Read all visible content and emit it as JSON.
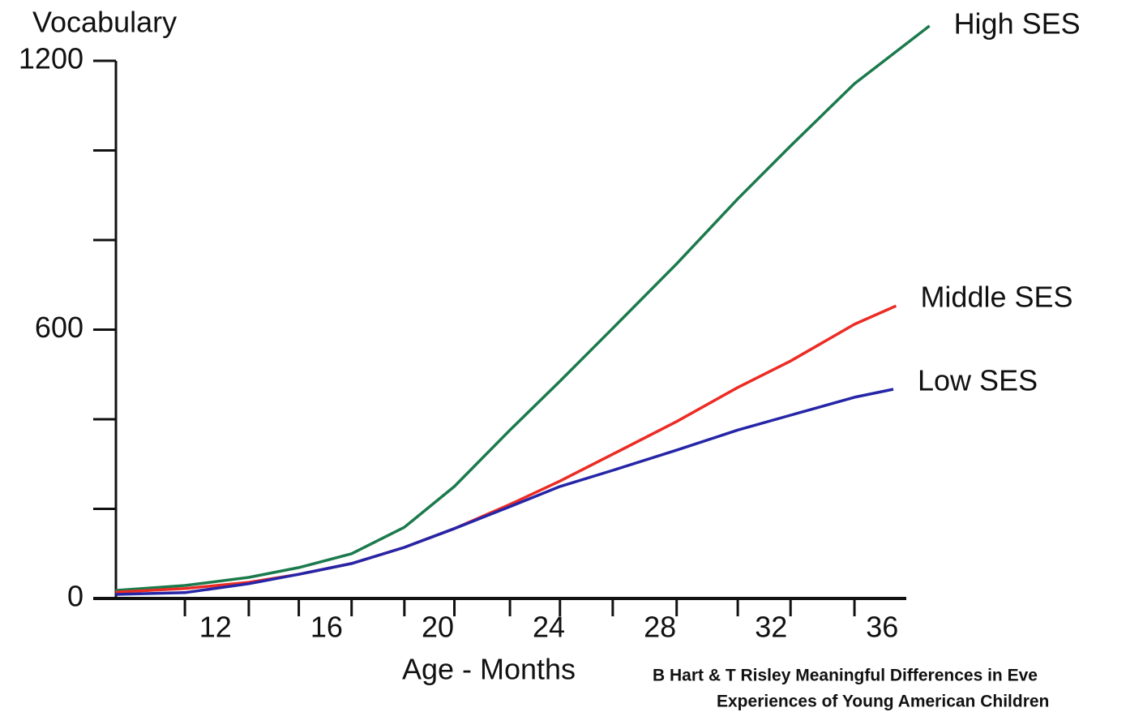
{
  "chart_data": {
    "type": "line",
    "title": "Vocabulary",
    "x_label": "Age - Months",
    "source": [
      "B Hart & T Risley Meaningful Differences in Eve",
      "Experiences of Young American Children"
    ],
    "xlim": [
      7.6,
      37.8
    ],
    "xticks": [
      12,
      16,
      20,
      24,
      28,
      32,
      36
    ],
    "x_minor_ticks": [
      10.9,
      13.2,
      15,
      16.9,
      18.8,
      20.6,
      22.6,
      24.4,
      26.3,
      28.6,
      30.8,
      32.7,
      35
    ],
    "ylim": [
      0,
      1200
    ],
    "yticks": [
      0,
      600,
      1200
    ],
    "y_minor_ticks": [
      200,
      400,
      800,
      1000
    ],
    "series": [
      {
        "name": "High SES",
        "color": "#1b7a4c",
        "x": [
          8.4,
          10.9,
          13.2,
          15,
          16.9,
          18.8,
          20.6,
          22.6,
          24.4,
          26.3,
          28.6,
          30.8,
          32.7,
          35,
          37.7
        ],
        "values": [
          18,
          29,
          47,
          69,
          100,
          159,
          250,
          376,
          485,
          603,
          747,
          892,
          1010,
          1149,
          1278
        ]
      },
      {
        "name": "Middle SES",
        "color": "#ec2b24",
        "x": [
          8.4,
          10.9,
          13.2,
          15,
          16.9,
          18.8,
          20.6,
          22.6,
          24.4,
          26.3,
          28.6,
          30.8,
          32.7,
          35,
          36.5
        ],
        "values": [
          14,
          22,
          36,
          54,
          78,
          114,
          156,
          210,
          262,
          322,
          395,
          471,
          530,
          612,
          653
        ]
      },
      {
        "name": "Low SES",
        "color": "#2525a8",
        "x": [
          8.4,
          10.9,
          13.2,
          15,
          16.9,
          18.8,
          20.6,
          22.6,
          24.4,
          26.3,
          28.6,
          30.8,
          32.7,
          35,
          36.4
        ],
        "values": [
          9,
          13,
          33,
          54,
          78,
          114,
          156,
          205,
          250,
          286,
          331,
          376,
          409,
          449,
          467
        ]
      }
    ]
  }
}
